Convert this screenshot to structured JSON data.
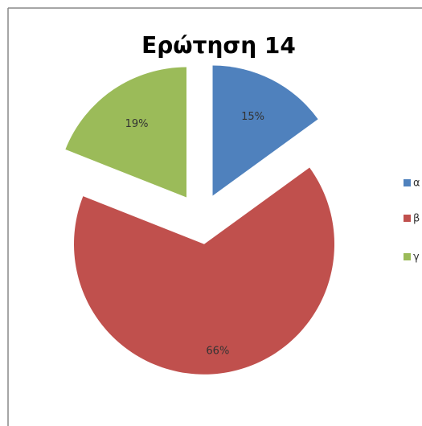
{
  "chart_data": {
    "type": "pie",
    "title": "Ερώτηση 14",
    "categories": [
      "α",
      "β",
      "γ"
    ],
    "values": [
      15,
      66,
      19
    ],
    "value_labels": [
      "15%",
      "66%",
      "19%"
    ],
    "colors": [
      "#4f81bd",
      "#c0504d",
      "#9bbb59"
    ],
    "exploded": true,
    "legend": "right"
  }
}
